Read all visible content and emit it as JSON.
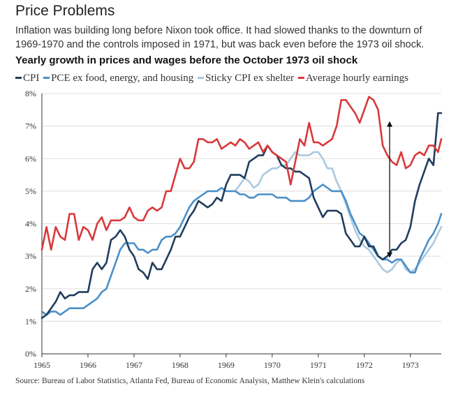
{
  "title": "Price Problems",
  "subtitle": "Inflation was building long before Nixon took office. It had slowed thanks to the downturn of 1969-1970 and the controls imposed in 1971, but was back even before the 1973 oil shock.",
  "source": "Source: Bureau of Labor Statistics, Atlanta Fed, Bureau of Economic Analysis, Matthew Klein's calculations",
  "colors": {
    "cpi": "#1f3d5c",
    "pce": "#4a8fc7",
    "sticky": "#a9c9e0",
    "ahe": "#d9383a",
    "grid": "#dddddd",
    "axis": "#333333"
  },
  "chart_data": {
    "type": "line",
    "title": "Yearly growth in prices and wages before the October 1973 oil shock",
    "x_unit": "year",
    "xlim": [
      1965,
      1973.67
    ],
    "ylim": [
      0,
      8
    ],
    "y_ticks": [
      "0%",
      "1%",
      "2%",
      "3%",
      "4%",
      "5%",
      "6%",
      "7%",
      "8%"
    ],
    "x_ticks": [
      "1965",
      "1966",
      "1967",
      "1968",
      "1969",
      "1970",
      "1971",
      "1972",
      "1973"
    ],
    "grid": "horizontal",
    "legend_position": "top",
    "series": [
      {
        "name": "CPI",
        "x": [
          1965.0,
          1965.1,
          1965.2,
          1965.3,
          1965.4,
          1965.5,
          1965.6,
          1965.7,
          1965.8,
          1965.9,
          1966.0,
          1966.1,
          1966.2,
          1966.3,
          1966.4,
          1966.5,
          1966.6,
          1966.7,
          1966.8,
          1966.9,
          1967.0,
          1967.1,
          1967.2,
          1967.3,
          1967.4,
          1967.5,
          1967.6,
          1967.7,
          1967.8,
          1967.9,
          1968.0,
          1968.1,
          1968.2,
          1968.3,
          1968.4,
          1968.5,
          1968.6,
          1968.7,
          1968.8,
          1968.9,
          1969.0,
          1969.1,
          1969.2,
          1969.3,
          1969.4,
          1969.5,
          1969.6,
          1969.7,
          1969.8,
          1969.9,
          1970.0,
          1970.1,
          1970.2,
          1970.3,
          1970.4,
          1970.5,
          1970.6,
          1970.7,
          1970.8,
          1970.9,
          1971.0,
          1971.1,
          1971.2,
          1971.3,
          1971.4,
          1971.5,
          1971.6,
          1971.7,
          1971.8,
          1971.9,
          1972.0,
          1972.1,
          1972.2,
          1972.3,
          1972.4,
          1972.5,
          1972.6,
          1972.7,
          1972.8,
          1972.9,
          1973.0,
          1973.1,
          1973.2,
          1973.3,
          1973.4,
          1973.5,
          1973.6,
          1973.67
        ],
        "values": [
          1.1,
          1.2,
          1.4,
          1.6,
          1.9,
          1.7,
          1.8,
          1.8,
          1.9,
          1.9,
          1.9,
          2.6,
          2.8,
          2.6,
          2.8,
          3.5,
          3.6,
          3.8,
          3.6,
          3.2,
          3.0,
          2.6,
          2.5,
          2.3,
          2.8,
          2.6,
          2.6,
          2.9,
          3.2,
          3.6,
          3.6,
          3.9,
          4.2,
          4.4,
          4.7,
          4.6,
          4.5,
          4.6,
          4.8,
          4.7,
          5.2,
          5.5,
          5.5,
          5.5,
          5.4,
          5.9,
          6.0,
          6.1,
          6.1,
          6.4,
          6.2,
          6.1,
          5.8,
          5.7,
          5.7,
          5.6,
          5.6,
          5.5,
          5.4,
          4.8,
          4.5,
          4.2,
          4.4,
          4.4,
          4.4,
          4.3,
          3.7,
          3.5,
          3.3,
          3.3,
          3.6,
          3.3,
          3.3,
          3.0,
          2.9,
          3.0,
          3.2,
          3.2,
          3.4,
          3.5,
          3.9,
          4.7,
          5.2,
          5.6,
          6.0,
          5.8,
          7.4,
          7.4
        ]
      },
      {
        "name": "PCE ex food, energy, and housing",
        "x": [
          1965.0,
          1965.1,
          1965.2,
          1965.3,
          1965.4,
          1965.5,
          1965.6,
          1965.7,
          1965.8,
          1965.9,
          1966.0,
          1966.1,
          1966.2,
          1966.3,
          1966.4,
          1966.5,
          1966.6,
          1966.7,
          1966.8,
          1966.9,
          1967.0,
          1967.1,
          1967.2,
          1967.3,
          1967.4,
          1967.5,
          1967.6,
          1967.7,
          1967.8,
          1967.9,
          1968.0,
          1968.1,
          1968.2,
          1968.3,
          1968.4,
          1968.5,
          1968.6,
          1968.7,
          1968.8,
          1968.9,
          1969.0,
          1969.1,
          1969.2,
          1969.3,
          1969.4,
          1969.5,
          1969.6,
          1969.7,
          1969.8,
          1969.9,
          1970.0,
          1970.1,
          1970.2,
          1970.3,
          1970.4,
          1970.5,
          1970.6,
          1970.7,
          1970.8,
          1970.9,
          1971.0,
          1971.1,
          1971.2,
          1971.3,
          1971.4,
          1971.5,
          1971.6,
          1971.7,
          1971.8,
          1971.9,
          1972.0,
          1972.1,
          1972.2,
          1972.3,
          1972.4,
          1972.5,
          1972.6,
          1972.7,
          1972.8,
          1972.9,
          1973.0,
          1973.1,
          1973.2,
          1973.3,
          1973.4,
          1973.5,
          1973.6,
          1973.67
        ],
        "values": [
          1.3,
          1.2,
          1.3,
          1.3,
          1.2,
          1.3,
          1.4,
          1.4,
          1.4,
          1.4,
          1.5,
          1.6,
          1.7,
          1.9,
          2.0,
          2.4,
          2.8,
          3.2,
          3.4,
          3.4,
          3.4,
          3.2,
          3.2,
          3.1,
          3.2,
          3.2,
          3.5,
          3.6,
          3.6,
          3.7,
          3.9,
          4.2,
          4.5,
          4.7,
          4.8,
          4.9,
          5.0,
          5.0,
          5.0,
          5.1,
          5.0,
          5.0,
          5.0,
          4.9,
          4.9,
          4.8,
          4.8,
          4.9,
          4.9,
          4.9,
          4.9,
          4.8,
          4.8,
          4.8,
          4.7,
          4.7,
          4.7,
          4.7,
          4.8,
          5.0,
          5.1,
          5.2,
          5.1,
          5.0,
          5.0,
          5.0,
          4.7,
          4.3,
          4.0,
          3.7,
          3.6,
          3.4,
          3.2,
          3.0,
          2.9,
          2.9,
          2.8,
          2.9,
          2.9,
          2.7,
          2.5,
          2.5,
          2.9,
          3.2,
          3.5,
          3.7,
          4.0,
          4.3
        ]
      },
      {
        "name": "Sticky CPI ex shelter",
        "x": [
          1969.2,
          1969.3,
          1969.4,
          1969.5,
          1969.6,
          1969.7,
          1969.8,
          1969.9,
          1970.0,
          1970.1,
          1970.2,
          1970.3,
          1970.4,
          1970.5,
          1970.6,
          1970.7,
          1970.8,
          1970.9,
          1971.0,
          1971.1,
          1971.2,
          1971.3,
          1971.4,
          1971.5,
          1971.6,
          1971.7,
          1971.8,
          1971.9,
          1972.0,
          1972.1,
          1972.2,
          1972.3,
          1972.4,
          1972.5,
          1972.6,
          1972.7,
          1972.8,
          1972.9,
          1973.0,
          1973.1,
          1973.2,
          1973.3,
          1973.4,
          1973.5,
          1973.6,
          1973.67
        ],
        "values": [
          5.0,
          5.2,
          5.4,
          5.3,
          5.1,
          5.2,
          5.5,
          5.6,
          5.7,
          5.7,
          5.8,
          5.8,
          6.0,
          6.2,
          6.1,
          6.1,
          6.1,
          6.2,
          6.2,
          6.0,
          5.7,
          5.7,
          5.3,
          5.0,
          4.6,
          4.2,
          3.8,
          3.5,
          3.3,
          3.2,
          3.0,
          2.8,
          2.6,
          2.5,
          2.6,
          2.8,
          2.9,
          2.6,
          2.5,
          2.6,
          2.8,
          3.0,
          3.2,
          3.4,
          3.7,
          3.9
        ]
      },
      {
        "name": "Average hourly earnings",
        "x": [
          1965.0,
          1965.1,
          1965.2,
          1965.3,
          1965.4,
          1965.5,
          1965.6,
          1965.7,
          1965.8,
          1965.9,
          1966.0,
          1966.1,
          1966.2,
          1966.3,
          1966.4,
          1966.5,
          1966.6,
          1966.7,
          1966.8,
          1966.9,
          1967.0,
          1967.1,
          1967.2,
          1967.3,
          1967.4,
          1967.5,
          1967.6,
          1967.7,
          1967.8,
          1967.9,
          1968.0,
          1968.1,
          1968.2,
          1968.3,
          1968.4,
          1968.5,
          1968.6,
          1968.7,
          1968.8,
          1968.9,
          1969.0,
          1969.1,
          1969.2,
          1969.3,
          1969.4,
          1969.5,
          1969.6,
          1969.7,
          1969.8,
          1969.9,
          1970.0,
          1970.1,
          1970.2,
          1970.3,
          1970.4,
          1970.5,
          1970.6,
          1970.7,
          1970.8,
          1970.9,
          1971.0,
          1971.1,
          1971.2,
          1971.3,
          1971.4,
          1971.5,
          1971.6,
          1971.7,
          1971.8,
          1971.9,
          1972.0,
          1972.1,
          1972.2,
          1972.3,
          1972.4,
          1972.5,
          1972.6,
          1972.7,
          1972.8,
          1972.9,
          1973.0,
          1973.1,
          1973.2,
          1973.3,
          1973.4,
          1973.5,
          1973.6,
          1973.67
        ],
        "values": [
          3.2,
          3.9,
          3.2,
          3.9,
          3.6,
          3.5,
          4.3,
          4.3,
          3.5,
          3.9,
          3.8,
          3.5,
          4.0,
          4.2,
          3.8,
          4.1,
          4.1,
          4.1,
          4.2,
          4.5,
          4.2,
          4.1,
          4.1,
          4.4,
          4.5,
          4.4,
          4.5,
          5.0,
          5.0,
          5.5,
          6.0,
          5.7,
          5.7,
          5.9,
          6.6,
          6.6,
          6.5,
          6.5,
          6.6,
          6.3,
          6.4,
          6.5,
          6.4,
          6.6,
          6.5,
          6.3,
          6.4,
          6.5,
          6.2,
          6.4,
          6.2,
          6.1,
          6.0,
          5.9,
          5.2,
          5.9,
          6.6,
          6.4,
          7.1,
          6.5,
          6.5,
          6.4,
          6.5,
          6.6,
          7.0,
          7.8,
          7.8,
          7.6,
          7.4,
          7.1,
          7.5,
          7.9,
          7.8,
          7.5,
          6.4,
          6.1,
          5.9,
          5.8,
          6.2,
          5.7,
          5.8,
          6.1,
          6.2,
          6.1,
          6.4,
          6.4,
          6.2,
          6.6
        ]
      }
    ],
    "annotation": {
      "type": "double-arrow",
      "x": 1972.55,
      "y_from": 2.95,
      "y_to": 7.15
    }
  }
}
